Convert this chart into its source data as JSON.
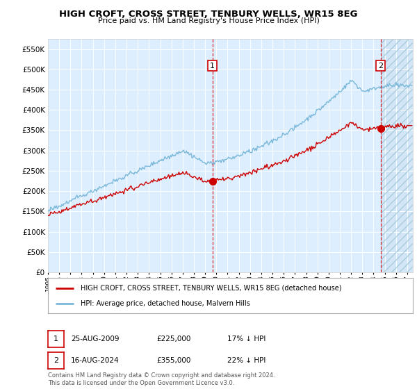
{
  "title": "HIGH CROFT, CROSS STREET, TENBURY WELLS, WR15 8EG",
  "subtitle": "Price paid vs. HM Land Registry's House Price Index (HPI)",
  "legend_line1": "HIGH CROFT, CROSS STREET, TENBURY WELLS, WR15 8EG (detached house)",
  "legend_line2": "HPI: Average price, detached house, Malvern Hills",
  "footnote": "Contains HM Land Registry data © Crown copyright and database right 2024.\nThis data is licensed under the Open Government Licence v3.0.",
  "sale1_label": "1",
  "sale1_date": "25-AUG-2009",
  "sale1_price": "£225,000",
  "sale1_hpi": "17% ↓ HPI",
  "sale2_label": "2",
  "sale2_date": "16-AUG-2024",
  "sale2_price": "£355,000",
  "sale2_hpi": "22% ↓ HPI",
  "ylim": [
    0,
    575000
  ],
  "yticks": [
    0,
    50000,
    100000,
    150000,
    200000,
    250000,
    300000,
    350000,
    400000,
    450000,
    500000,
    550000
  ],
  "hpi_color": "#7ab8d9",
  "price_color": "#cc0000",
  "bg_color": "#ddeeff",
  "hatch_color": "#c8dff0",
  "marker1_x": 2009.646,
  "marker1_y": 225000,
  "marker2_x": 2024.627,
  "marker2_y": 355000,
  "xlim_start": 1995.0,
  "xlim_end": 2027.5
}
